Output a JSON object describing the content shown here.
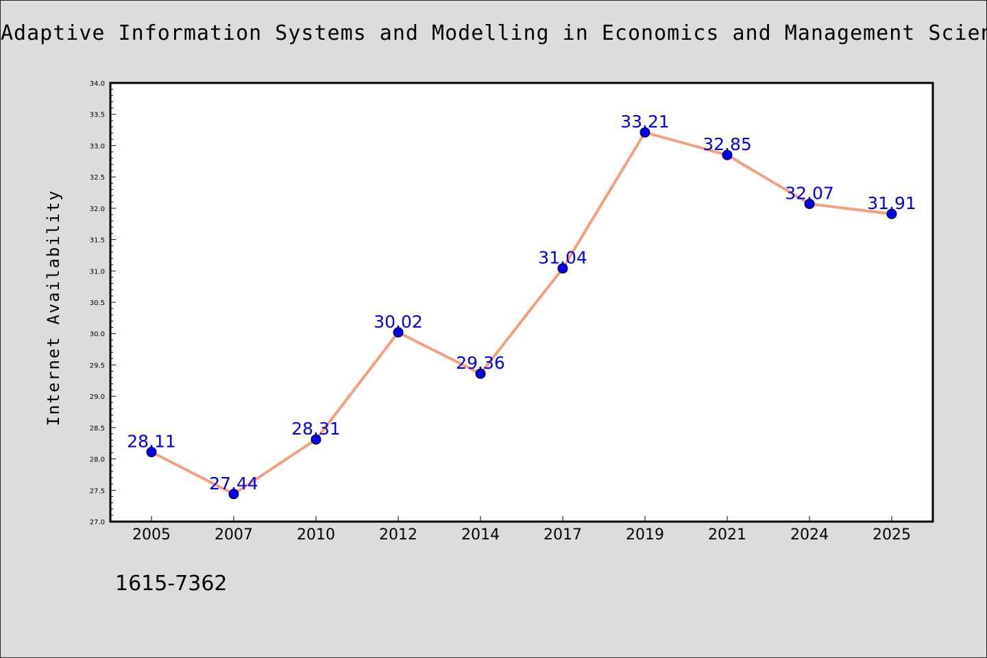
{
  "chart_data": {
    "type": "line",
    "title": "Adaptive Information Systems and Modelling in Economics and Management Science",
    "xlabel": "",
    "ylabel": "Internet Availability",
    "categories": [
      "2005",
      "2007",
      "2010",
      "2012",
      "2014",
      "2017",
      "2019",
      "2021",
      "2024",
      "2025"
    ],
    "series": [
      {
        "values": [
          28.11,
          27.44,
          28.31,
          30.02,
          29.36,
          31.04,
          33.21,
          32.85,
          32.07,
          31.91
        ],
        "labels": [
          "28.11",
          "27.44",
          "28.31",
          "30.02",
          "29.36",
          "31.04",
          "33.21",
          "32.85",
          "32.07",
          "31.91"
        ]
      }
    ],
    "ylim": [
      27.0,
      34.0
    ],
    "yticks": [
      "27.0",
      "27.5",
      "28.0",
      "28.5",
      "29.0",
      "29.5",
      "30.0",
      "30.5",
      "31.0",
      "31.5",
      "32.0",
      "32.5",
      "33.0",
      "33.5",
      "34.0"
    ],
    "grid": false,
    "colors": {
      "line": "#f4a07f",
      "marker": "#0000ee",
      "label": "#0000ee",
      "plot_bg": "#ffffff",
      "page_bg": "#dcdcdc"
    }
  },
  "footnote": "1615-7362"
}
